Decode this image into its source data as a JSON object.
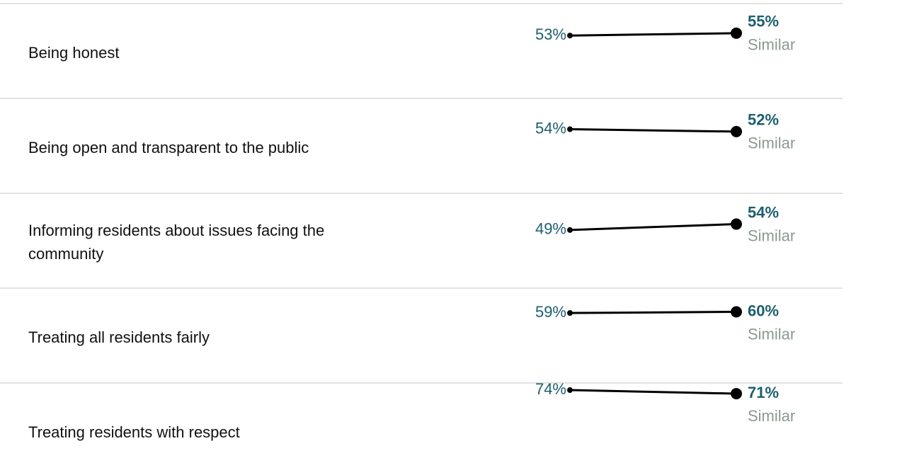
{
  "chart_data": {
    "type": "dumbbell",
    "categories": [
      "Being honest",
      "Being open and transparent to the public",
      "Informing residents about issues facing the community",
      "Treating all residents fairly",
      "Treating residents with respect"
    ],
    "ylim": [
      0,
      80
    ],
    "series": [
      {
        "color": "#1d5e6e",
        "values": [
          53,
          54,
          49,
          59,
          74
        ],
        "value_labels": [
          "53%",
          "54%",
          "49%",
          "59%",
          "74%"
        ]
      },
      {
        "color": "#1d5e6e",
        "values": [
          55,
          52,
          54,
          60,
          71
        ],
        "value_labels": [
          "55%",
          "52%",
          "54%",
          "60%",
          "71%"
        ]
      }
    ],
    "comparisons": [
      "Similar",
      "Similar",
      "Similar",
      "Similar",
      "Similar"
    ],
    "comparison_color": "#8a9a8f",
    "mark_color": "#000000"
  }
}
